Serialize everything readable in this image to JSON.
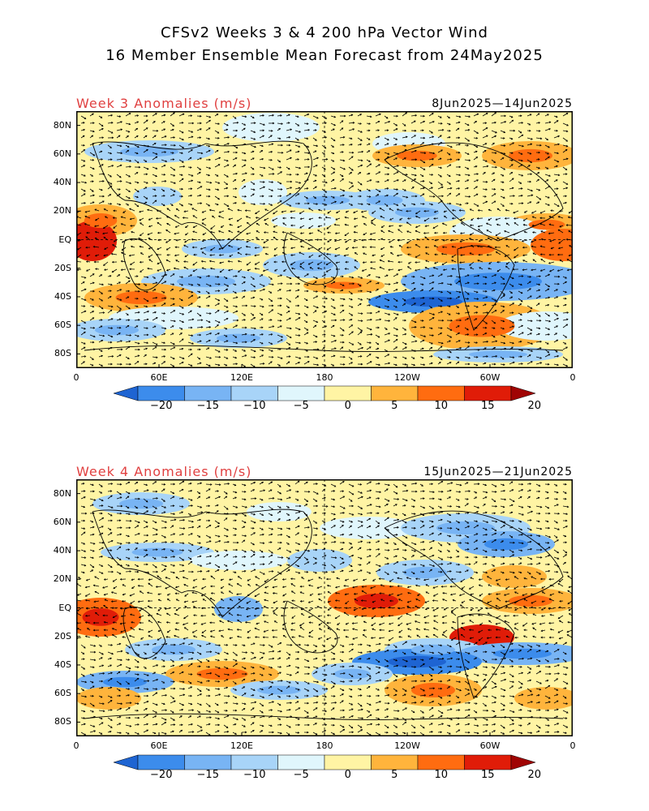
{
  "title_line1": "CFSv2 Weeks 3 & 4 200 hPa Vector Wind",
  "title_line2": "16 Member Ensemble Mean Forecast from 24May2025",
  "panels": [
    {
      "label": "Week 3 Anomalies (m/s)",
      "dates": "8Jun2025—14Jun2025"
    },
    {
      "label": "Week 4 Anomalies (m/s)",
      "dates": "15Jun2025—21Jun2025"
    }
  ],
  "lat_labels": [
    "80N",
    "60N",
    "40N",
    "20N",
    "EQ",
    "20S",
    "40S",
    "60S",
    "80S"
  ],
  "lon_labels": [
    "0",
    "60E",
    "120E",
    "180",
    "120W",
    "60W",
    "0"
  ],
  "colorbar": {
    "labels": [
      "−20",
      "−15",
      "−10",
      "−5",
      "0",
      "5",
      "10",
      "15",
      "20"
    ],
    "colors": [
      "#1e64d2",
      "#3c8cec",
      "#78b4f4",
      "#a8d4f8",
      "#e0f6fc",
      "#fff4a4",
      "#ffb43c",
      "#ff6c10",
      "#e01c08",
      "#a00404"
    ]
  }
}
